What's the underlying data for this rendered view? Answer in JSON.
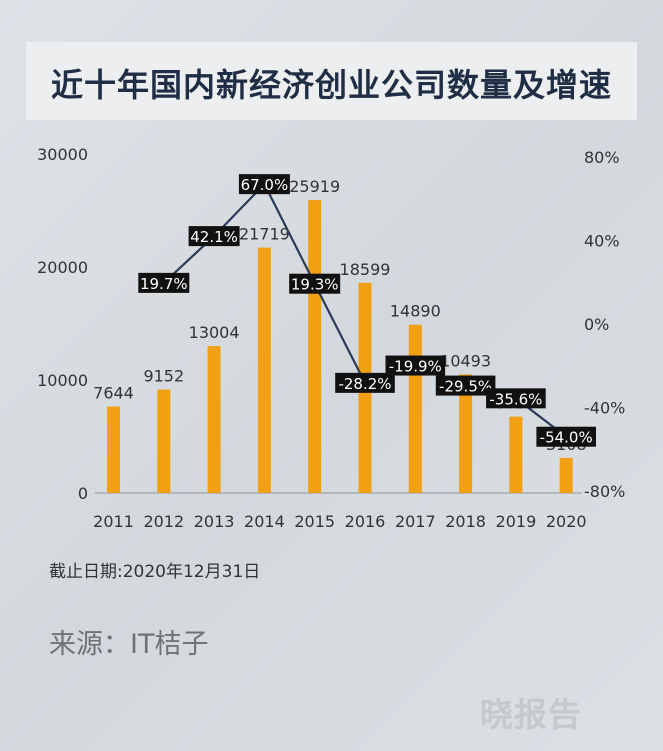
{
  "title": "近十年国内新经济创业公司数量及增速",
  "note": "截止日期:2020年12月31日",
  "source": "来源：IT桔子",
  "watermark": "晓报告",
  "colors": {
    "bar": "#f0a012",
    "line": "#2b3a57",
    "label_bg": "#111111",
    "label_fg": "#ffffff",
    "title": "#1f2e44"
  },
  "chart_data": {
    "type": "bar+line",
    "categories": [
      "2011",
      "2012",
      "2013",
      "2014",
      "2015",
      "2016",
      "2017",
      "2018",
      "2019",
      "2020"
    ],
    "series": [
      {
        "name": "",
        "type": "bar",
        "axis": "left",
        "values": [
          7644,
          9152,
          13004,
          21719,
          25919,
          18599,
          14890,
          10493,
          6758,
          3108
        ],
        "labels": [
          "7644",
          "9152",
          "13004",
          "21719",
          "25919",
          "18599",
          "14890",
          "10493",
          "6758",
          "3108"
        ]
      },
      {
        "name": "",
        "type": "line",
        "axis": "right",
        "x": [
          "2012",
          "2013",
          "2014",
          "2015",
          "2016",
          "2017",
          "2018",
          "2019",
          "2020"
        ],
        "values": [
          19.7,
          42.1,
          67.0,
          19.3,
          -28.2,
          -19.9,
          -29.5,
          -35.6,
          -54.0
        ],
        "labels": [
          "19.7%",
          "42.1%",
          "67.0%",
          "19.3%",
          "-28.2%",
          "-19.9%",
          "-29.5%",
          "-35.6%",
          "-54.0%"
        ]
      }
    ],
    "y_left": {
      "ylim": [
        0,
        30000
      ],
      "ticks": [
        "0",
        "10000",
        "20000",
        "30000"
      ]
    },
    "y_right": {
      "ylim": [
        -80,
        80
      ],
      "ticks": [
        "-80%",
        "-40%",
        "0%",
        "40%",
        "80%"
      ]
    },
    "grid": false,
    "legend": "none"
  }
}
